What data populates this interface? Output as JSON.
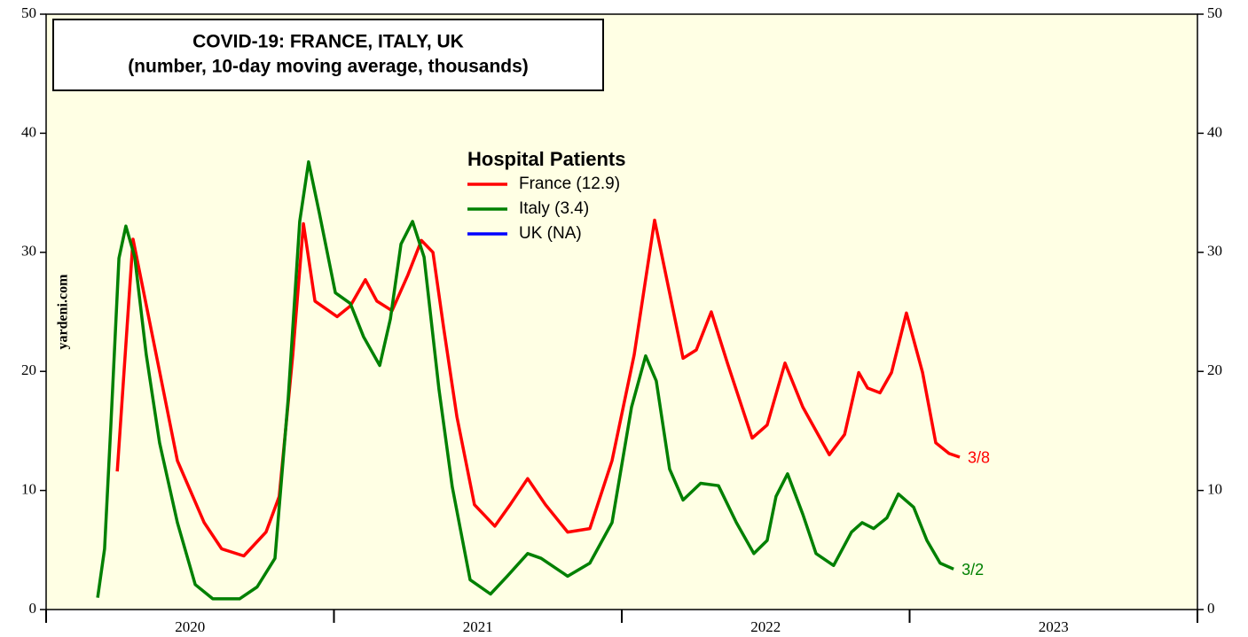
{
  "chart_data": {
    "type": "line",
    "title": [
      "COVID-19: FRANCE, ITALY, UK",
      "(number, 10-day moving average, thousands)"
    ],
    "legend_title": "Hospital Patients",
    "source": "yardeni.com",
    "categories": [
      "2020",
      "2021",
      "2022",
      "2023"
    ],
    "xlim": [
      2020,
      2024
    ],
    "xticks": [
      2020,
      2021,
      2022,
      2023,
      2024
    ],
    "ylim": [
      0,
      50
    ],
    "yticks": [
      0,
      10,
      20,
      30,
      40,
      50
    ],
    "y2lim": [
      0,
      50
    ],
    "y2ticks": [
      0,
      10,
      20,
      30,
      40,
      50
    ],
    "background": "#ffffe4",
    "series": [
      {
        "name": "France (12.9)",
        "color": "#ff0000",
        "end_label": "3/8",
        "x": [
          2020.247,
          2020.302,
          2020.394,
          2020.456,
          2020.549,
          2020.61,
          2020.687,
          2020.764,
          2020.81,
          2020.857,
          2020.894,
          2020.934,
          2021.011,
          2021.057,
          2021.109,
          2021.149,
          2021.202,
          2021.257,
          2021.304,
          2021.344,
          2021.381,
          2021.427,
          2021.488,
          2021.559,
          2021.612,
          2021.673,
          2021.735,
          2021.812,
          2021.889,
          2021.966,
          2022.043,
          2022.114,
          2022.166,
          2022.213,
          2022.259,
          2022.311,
          2022.367,
          2022.453,
          2022.505,
          2022.567,
          2022.629,
          2022.721,
          2022.774,
          2022.823,
          2022.854,
          2022.897,
          2022.937,
          2022.989,
          2023.045,
          2023.091,
          2023.137,
          2023.174
        ],
        "values": [
          11.6,
          31.1,
          20,
          12.5,
          7.3,
          5.1,
          4.5,
          6.5,
          9.5,
          21.4,
          32.4,
          25.9,
          24.6,
          25.5,
          27.7,
          25.9,
          25.1,
          28.1,
          31,
          30,
          23.7,
          16.2,
          8.8,
          7,
          8.8,
          11,
          8.8,
          6.5,
          6.8,
          12.5,
          21.4,
          32.7,
          26.6,
          21.1,
          21.8,
          25,
          20.7,
          14.4,
          15.5,
          20.7,
          17,
          13,
          14.7,
          19.9,
          18.6,
          18.2,
          19.9,
          24.9,
          19.9,
          14,
          13.1,
          12.8
        ]
      },
      {
        "name": "Italy (3.4)",
        "color": "#008000",
        "end_label": "3/2",
        "x": [
          2020.179,
          2020.203,
          2020.225,
          2020.253,
          2020.277,
          2020.308,
          2020.348,
          2020.394,
          2020.456,
          2020.518,
          2020.579,
          2020.672,
          2020.733,
          2020.795,
          2020.841,
          2020.881,
          2020.912,
          2020.949,
          2021.005,
          2021.057,
          2021.103,
          2021.159,
          2021.196,
          2021.233,
          2021.273,
          2021.313,
          2021.365,
          2021.411,
          2021.473,
          2021.544,
          2021.602,
          2021.673,
          2021.72,
          2021.812,
          2021.889,
          2021.966,
          2022.034,
          2022.083,
          2022.12,
          2022.166,
          2022.213,
          2022.274,
          2022.336,
          2022.398,
          2022.459,
          2022.505,
          2022.536,
          2022.576,
          2022.629,
          2022.675,
          2022.736,
          2022.798,
          2022.835,
          2022.875,
          2022.921,
          2022.961,
          2023.014,
          2023.06,
          2023.106,
          2023.153
        ],
        "values": [
          1,
          5.1,
          15.5,
          29.5,
          32.2,
          29.6,
          21.4,
          14,
          7.3,
          2.1,
          0.9,
          0.9,
          1.9,
          4.3,
          17.7,
          32.6,
          37.6,
          33.3,
          26.6,
          25.7,
          22.9,
          20.5,
          24.4,
          30.7,
          32.6,
          29.6,
          18.5,
          10.3,
          2.5,
          1.3,
          2.8,
          4.7,
          4.3,
          2.8,
          3.9,
          7.3,
          17,
          21.3,
          19.2,
          11.8,
          9.2,
          10.6,
          10.4,
          7.3,
          4.7,
          5.8,
          9.5,
          11.4,
          8,
          4.7,
          3.7,
          6.5,
          7.3,
          6.8,
          7.7,
          9.7,
          8.6,
          5.8,
          3.9,
          3.4
        ]
      },
      {
        "name": "UK (NA)",
        "color": "#0000ff",
        "x": [],
        "values": []
      }
    ]
  }
}
